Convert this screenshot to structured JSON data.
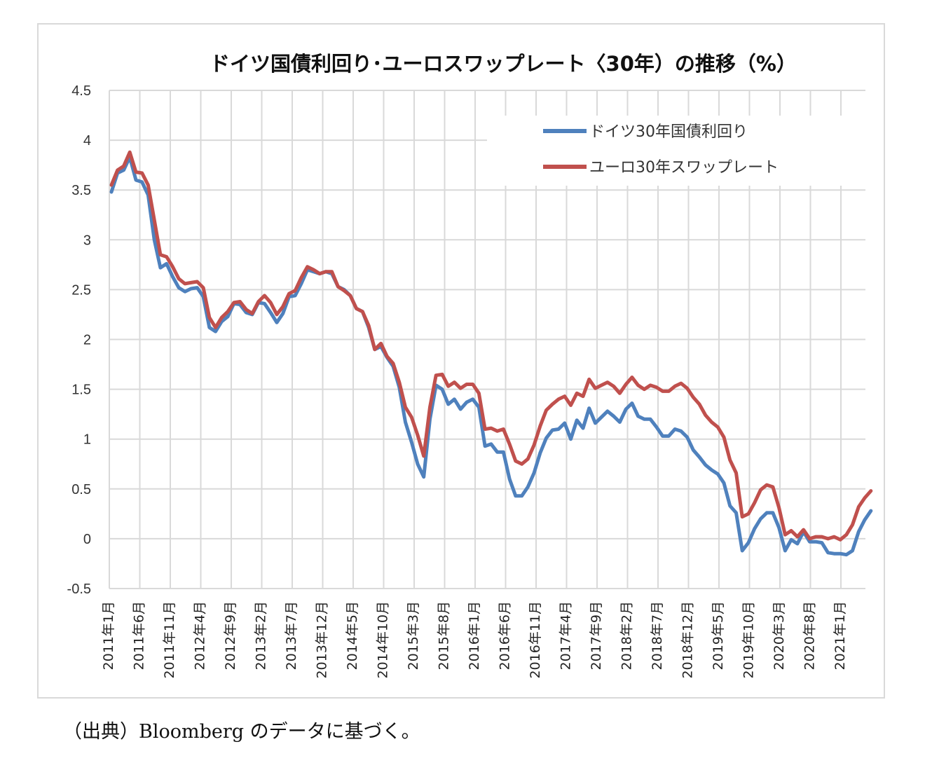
{
  "chart_data": {
    "type": "line",
    "title": "ドイツ国債利回り･ユーロスワップレート〈30年）の推移（%）",
    "xlabel": "",
    "ylabel": "",
    "ylim": [
      -0.5,
      4.5
    ],
    "yticks": [
      -0.5,
      0,
      0.5,
      1,
      1.5,
      2,
      2.5,
      3,
      3.5,
      4,
      4.5
    ],
    "ytick_labels": [
      "-0.5",
      "0",
      "0.5",
      "1",
      "1.5",
      "2",
      "2.5",
      "3",
      "3.5",
      "4",
      "4.5"
    ],
    "xtick_labels": [
      "2011年1月",
      "2011年6月",
      "2011年11月",
      "2012年4月",
      "2012年9月",
      "2013年2月",
      "2013年7月",
      "2013年12月",
      "2014年5月",
      "2014年10月",
      "2015年3月",
      "2015年8月",
      "2016年1月",
      "2016年6月",
      "2016年11月",
      "2017年4月",
      "2017年9月",
      "2018年2月",
      "2018年7月",
      "2018年12月",
      "2019年5月",
      "2019年10月",
      "2020年3月",
      "2020年8月",
      "2021年1月"
    ],
    "grid": true,
    "legend_position": "top-right",
    "series": [
      {
        "name": "ドイツ30年国債利回り",
        "color": "#4f81bd",
        "values": [
          3.48,
          3.67,
          3.7,
          3.83,
          3.6,
          3.58,
          3.45,
          3.0,
          2.72,
          2.76,
          2.63,
          2.52,
          2.48,
          2.51,
          2.52,
          2.43,
          2.12,
          2.08,
          2.18,
          2.23,
          2.36,
          2.35,
          2.27,
          2.25,
          2.37,
          2.36,
          2.27,
          2.17,
          2.26,
          2.43,
          2.44,
          2.56,
          2.7,
          2.68,
          2.66,
          2.68,
          2.66,
          2.53,
          2.5,
          2.44,
          2.31,
          2.28,
          2.12,
          1.9,
          1.93,
          1.82,
          1.73,
          1.52,
          1.17,
          0.97,
          0.75,
          0.62,
          1.2,
          1.54,
          1.5,
          1.35,
          1.4,
          1.3,
          1.37,
          1.4,
          1.32,
          0.93,
          0.95,
          0.87,
          0.87,
          0.6,
          0.43,
          0.43,
          0.52,
          0.66,
          0.86,
          1.01,
          1.09,
          1.1,
          1.16,
          1.0,
          1.19,
          1.11,
          1.31,
          1.16,
          1.22,
          1.28,
          1.23,
          1.17,
          1.3,
          1.36,
          1.23,
          1.2,
          1.2,
          1.12,
          1.03,
          1.03,
          1.1,
          1.08,
          1.02,
          0.89,
          0.82,
          0.74,
          0.69,
          0.65,
          0.56,
          0.33,
          0.26,
          -0.12,
          -0.04,
          0.1,
          0.2,
          0.26,
          0.26,
          0.11,
          -0.12,
          -0.01,
          -0.05,
          0.07,
          -0.03,
          -0.03,
          -0.04,
          -0.14,
          -0.15,
          -0.15,
          -0.16,
          -0.12,
          0.07,
          0.19,
          0.28
        ]
      },
      {
        "name": "ユーロ30年スワップレート",
        "color": "#c0504d",
        "values": [
          3.55,
          3.7,
          3.74,
          3.88,
          3.68,
          3.67,
          3.55,
          3.2,
          2.85,
          2.83,
          2.73,
          2.61,
          2.56,
          2.57,
          2.58,
          2.52,
          2.22,
          2.12,
          2.22,
          2.28,
          2.37,
          2.38,
          2.3,
          2.26,
          2.38,
          2.44,
          2.37,
          2.25,
          2.33,
          2.46,
          2.49,
          2.62,
          2.73,
          2.7,
          2.66,
          2.68,
          2.68,
          2.53,
          2.49,
          2.44,
          2.31,
          2.28,
          2.14,
          1.9,
          1.96,
          1.83,
          1.76,
          1.57,
          1.32,
          1.22,
          1.04,
          0.83,
          1.32,
          1.64,
          1.65,
          1.53,
          1.57,
          1.51,
          1.55,
          1.55,
          1.46,
          1.1,
          1.11,
          1.08,
          1.1,
          0.95,
          0.78,
          0.75,
          0.8,
          0.94,
          1.13,
          1.29,
          1.35,
          1.4,
          1.43,
          1.34,
          1.46,
          1.43,
          1.6,
          1.51,
          1.54,
          1.57,
          1.53,
          1.46,
          1.55,
          1.62,
          1.54,
          1.5,
          1.54,
          1.52,
          1.48,
          1.48,
          1.53,
          1.56,
          1.51,
          1.42,
          1.35,
          1.24,
          1.17,
          1.12,
          1.02,
          0.79,
          0.66,
          0.22,
          0.25,
          0.36,
          0.49,
          0.54,
          0.52,
          0.31,
          0.04,
          0.08,
          0.02,
          0.09,
          0.0,
          0.02,
          0.02,
          0.0,
          0.02,
          -0.01,
          0.04,
          0.14,
          0.32,
          0.41,
          0.48
        ]
      }
    ]
  },
  "source_note": "（出典）Bloomberg のデータに基づく。"
}
